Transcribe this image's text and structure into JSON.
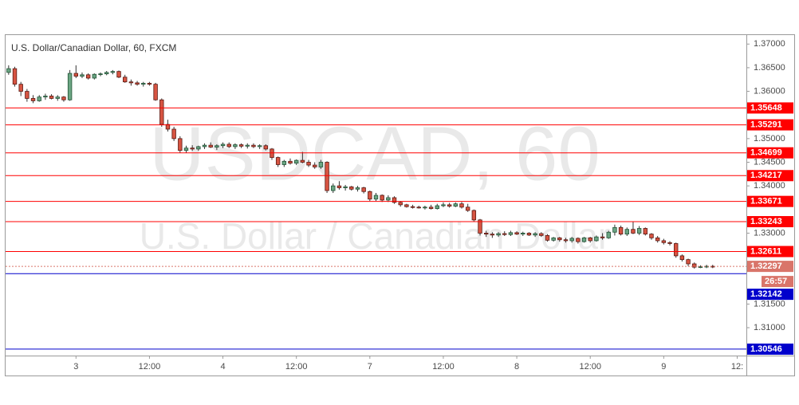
{
  "chart_data": {
    "type": "candlestick",
    "title": "U.S. Dollar/Canadian Dollar, 60, FXCM",
    "watermark": "USDCAD, 60",
    "watermark_subtitle": "U.S. Dollar / Canadian Dollar",
    "up_color": "#6ba583",
    "down_color": "#d75442",
    "ylim": [
      1.3041,
      1.3719
    ],
    "yticks": [
      {
        "value": 1.37,
        "label": "1.37000"
      },
      {
        "value": 1.365,
        "label": "1.36500"
      },
      {
        "value": 1.36,
        "label": "1.36000"
      },
      {
        "value": 1.35,
        "label": "1.35000"
      },
      {
        "value": 1.345,
        "label": "1.34500"
      },
      {
        "value": 1.34,
        "label": "1.34000"
      },
      {
        "value": 1.33,
        "label": "1.33000"
      },
      {
        "value": 1.315,
        "label": "1.31500"
      },
      {
        "value": 1.31,
        "label": "1.31000"
      }
    ],
    "xlim": [
      -0.5,
      120.5
    ],
    "xticks": [
      {
        "value": 11,
        "label": "3"
      },
      {
        "value": 23,
        "label": "12:00"
      },
      {
        "value": 35,
        "label": "4"
      },
      {
        "value": 47,
        "label": "12:00"
      },
      {
        "value": 59,
        "label": "7"
      },
      {
        "value": 71,
        "label": "12:00"
      },
      {
        "value": 83,
        "label": "8"
      },
      {
        "value": 95,
        "label": "12:00"
      },
      {
        "value": 107,
        "label": "9"
      },
      {
        "value": 119,
        "label": "12:"
      }
    ],
    "levels": [
      {
        "value": 1.35648,
        "color": "#ff0000"
      },
      {
        "value": 1.35291,
        "color": "#ff0000"
      },
      {
        "value": 1.34699,
        "color": "#ff0000"
      },
      {
        "value": 1.34217,
        "color": "#ff0000"
      },
      {
        "value": 1.33671,
        "color": "#ff0000"
      },
      {
        "value": 1.33243,
        "color": "#ff0000"
      },
      {
        "value": 1.32611,
        "color": "#ff0000"
      },
      {
        "value": 1.32142,
        "color": "#0000cc"
      },
      {
        "value": 1.30546,
        "color": "#0000cc"
      }
    ],
    "current_price": {
      "value": 1.32297,
      "countdown": "26:57",
      "color": "#d9756a"
    },
    "candles": [
      [
        1.364,
        1.3655,
        1.3635,
        1.3648
      ],
      [
        1.3648,
        1.3652,
        1.361,
        1.3615
      ],
      [
        1.3615,
        1.362,
        1.359,
        1.36
      ],
      [
        1.36,
        1.3605,
        1.3578,
        1.3585
      ],
      [
        1.3585,
        1.3592,
        1.3575,
        1.358
      ],
      [
        1.358,
        1.3592,
        1.3578,
        1.3588
      ],
      [
        1.3588,
        1.3595,
        1.3582,
        1.359
      ],
      [
        1.359,
        1.3594,
        1.3583,
        1.3585
      ],
      [
        1.3585,
        1.3592,
        1.358,
        1.3588
      ],
      [
        1.3588,
        1.359,
        1.3578,
        1.3582
      ],
      [
        1.3582,
        1.3645,
        1.358,
        1.3638
      ],
      [
        1.3638,
        1.3655,
        1.3628,
        1.3632
      ],
      [
        1.3632,
        1.364,
        1.3628,
        1.3635
      ],
      [
        1.3635,
        1.3638,
        1.3625,
        1.3628
      ],
      [
        1.3628,
        1.3638,
        1.3625,
        1.3636
      ],
      [
        1.3636,
        1.364,
        1.3632,
        1.3637
      ],
      [
        1.3637,
        1.3643,
        1.3634,
        1.364
      ],
      [
        1.364,
        1.3645,
        1.3636,
        1.3642
      ],
      [
        1.3642,
        1.3644,
        1.3628,
        1.363
      ],
      [
        1.363,
        1.3635,
        1.3618,
        1.362
      ],
      [
        1.362,
        1.3625,
        1.3612,
        1.3618
      ],
      [
        1.3618,
        1.3622,
        1.3612,
        1.3615
      ],
      [
        1.3615,
        1.362,
        1.361,
        1.3617
      ],
      [
        1.3617,
        1.362,
        1.3612,
        1.3615
      ],
      [
        1.3615,
        1.3618,
        1.358,
        1.3582
      ],
      [
        1.3582,
        1.3585,
        1.3525,
        1.353
      ],
      [
        1.353,
        1.354,
        1.3515,
        1.352
      ],
      [
        1.352,
        1.3525,
        1.3495,
        1.35
      ],
      [
        1.35,
        1.3505,
        1.347,
        1.3475
      ],
      [
        1.3475,
        1.3485,
        1.347,
        1.348
      ],
      [
        1.348,
        1.3486,
        1.3474,
        1.3478
      ],
      [
        1.3478,
        1.3485,
        1.3474,
        1.3483
      ],
      [
        1.3483,
        1.349,
        1.3478,
        1.3486
      ],
      [
        1.3486,
        1.3492,
        1.348,
        1.3482
      ],
      [
        1.3482,
        1.3488,
        1.3476,
        1.3485
      ],
      [
        1.3485,
        1.3492,
        1.348,
        1.3488
      ],
      [
        1.3488,
        1.3492,
        1.348,
        1.3483
      ],
      [
        1.3483,
        1.349,
        1.3478,
        1.3487
      ],
      [
        1.3487,
        1.349,
        1.348,
        1.3484
      ],
      [
        1.3484,
        1.349,
        1.3479,
        1.3486
      ],
      [
        1.3486,
        1.349,
        1.348,
        1.3483
      ],
      [
        1.3483,
        1.3488,
        1.3478,
        1.3485
      ],
      [
        1.3485,
        1.3488,
        1.3475,
        1.3478
      ],
      [
        1.3478,
        1.348,
        1.3455,
        1.346
      ],
      [
        1.346,
        1.3462,
        1.344,
        1.3445
      ],
      [
        1.3445,
        1.3455,
        1.344,
        1.3452
      ],
      [
        1.3452,
        1.3458,
        1.3445,
        1.3448
      ],
      [
        1.3448,
        1.3456,
        1.3444,
        1.3454
      ],
      [
        1.3454,
        1.3472,
        1.3448,
        1.345
      ],
      [
        1.345,
        1.3455,
        1.344,
        1.3444
      ],
      [
        1.3444,
        1.345,
        1.3436,
        1.344
      ],
      [
        1.344,
        1.3455,
        1.3436,
        1.345
      ],
      [
        1.345,
        1.3452,
        1.3385,
        1.339
      ],
      [
        1.339,
        1.3405,
        1.3385,
        1.34
      ],
      [
        1.34,
        1.341,
        1.3392,
        1.3396
      ],
      [
        1.3396,
        1.3402,
        1.339,
        1.3398
      ],
      [
        1.3398,
        1.34,
        1.339,
        1.3393
      ],
      [
        1.3393,
        1.34,
        1.3388,
        1.3396
      ],
      [
        1.3396,
        1.3398,
        1.3384,
        1.3388
      ],
      [
        1.3388,
        1.339,
        1.3368,
        1.3372
      ],
      [
        1.3372,
        1.3385,
        1.3368,
        1.338
      ],
      [
        1.338,
        1.3382,
        1.3366,
        1.337
      ],
      [
        1.337,
        1.338,
        1.3366,
        1.3375
      ],
      [
        1.3375,
        1.3378,
        1.3362,
        1.3365
      ],
      [
        1.3365,
        1.3368,
        1.3356,
        1.336
      ],
      [
        1.336,
        1.3362,
        1.3354,
        1.3356
      ],
      [
        1.3356,
        1.336,
        1.3352,
        1.3355
      ],
      [
        1.3355,
        1.3358,
        1.3352,
        1.3354
      ],
      [
        1.3354,
        1.3358,
        1.335,
        1.3355
      ],
      [
        1.3355,
        1.336,
        1.335,
        1.3352
      ],
      [
        1.3352,
        1.3362,
        1.335,
        1.3358
      ],
      [
        1.3358,
        1.3365,
        1.3355,
        1.336
      ],
      [
        1.336,
        1.3364,
        1.3354,
        1.3357
      ],
      [
        1.3357,
        1.3365,
        1.3355,
        1.3362
      ],
      [
        1.3362,
        1.3366,
        1.3352,
        1.3355
      ],
      [
        1.3355,
        1.3362,
        1.3345,
        1.3348
      ],
      [
        1.3348,
        1.335,
        1.3325,
        1.3328
      ],
      [
        1.3328,
        1.333,
        1.3295,
        1.33
      ],
      [
        1.33,
        1.3305,
        1.3292,
        1.3298
      ],
      [
        1.3298,
        1.3302,
        1.329,
        1.3296
      ],
      [
        1.3296,
        1.3302,
        1.3292,
        1.3299
      ],
      [
        1.3299,
        1.3304,
        1.3294,
        1.3297
      ],
      [
        1.3297,
        1.3305,
        1.3294,
        1.3301
      ],
      [
        1.3301,
        1.3304,
        1.3296,
        1.3298
      ],
      [
        1.3298,
        1.3303,
        1.3294,
        1.33
      ],
      [
        1.33,
        1.3302,
        1.3294,
        1.3296
      ],
      [
        1.3296,
        1.3302,
        1.3292,
        1.3299
      ],
      [
        1.3299,
        1.3302,
        1.3292,
        1.3295
      ],
      [
        1.3295,
        1.3298,
        1.3282,
        1.3285
      ],
      [
        1.3285,
        1.3292,
        1.3282,
        1.329
      ],
      [
        1.329,
        1.3292,
        1.3282,
        1.3286
      ],
      [
        1.3286,
        1.329,
        1.328,
        1.3284
      ],
      [
        1.3284,
        1.3292,
        1.328,
        1.3289
      ],
      [
        1.3289,
        1.3291,
        1.3278,
        1.3282
      ],
      [
        1.3282,
        1.3292,
        1.328,
        1.329
      ],
      [
        1.329,
        1.3292,
        1.328,
        1.3284
      ],
      [
        1.3284,
        1.3295,
        1.3282,
        1.3292
      ],
      [
        1.3292,
        1.33,
        1.3286,
        1.329
      ],
      [
        1.329,
        1.3305,
        1.3288,
        1.3302
      ],
      [
        1.3302,
        1.3318,
        1.3295,
        1.3312
      ],
      [
        1.3312,
        1.3316,
        1.3295,
        1.3298
      ],
      [
        1.3298,
        1.3312,
        1.3294,
        1.3308
      ],
      [
        1.3308,
        1.3324,
        1.3298,
        1.33
      ],
      [
        1.33,
        1.3315,
        1.3296,
        1.331
      ],
      [
        1.331,
        1.3312,
        1.3295,
        1.3298
      ],
      [
        1.3298,
        1.33,
        1.3286,
        1.329
      ],
      [
        1.329,
        1.3294,
        1.328,
        1.3284
      ],
      [
        1.3284,
        1.3288,
        1.3276,
        1.328
      ],
      [
        1.328,
        1.3283,
        1.3274,
        1.3278
      ],
      [
        1.3278,
        1.328,
        1.3248,
        1.3252
      ],
      [
        1.3252,
        1.3255,
        1.324,
        1.3244
      ],
      [
        1.3244,
        1.3246,
        1.323,
        1.3235
      ],
      [
        1.3235,
        1.3238,
        1.3225,
        1.3228
      ],
      [
        1.3228,
        1.3232,
        1.3226,
        1.3229
      ],
      [
        1.3229,
        1.3233,
        1.3226,
        1.323
      ],
      [
        1.323,
        1.3233,
        1.3226,
        1.3229
      ]
    ]
  }
}
